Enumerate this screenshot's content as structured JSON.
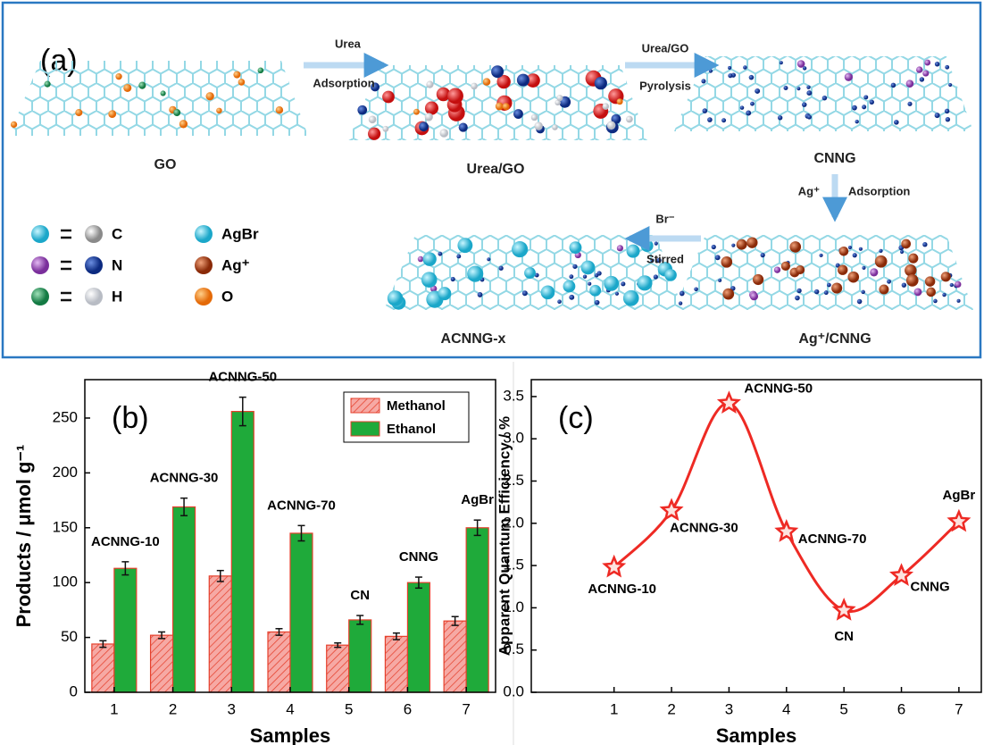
{
  "diagram": {
    "panel_label": "(a)",
    "sheets": [
      "GO",
      "Urea/GO",
      "CNNG",
      "Ag⁺/CNNG",
      "ACNNG-x"
    ],
    "steps": [
      {
        "top": "Urea",
        "bottom": "Adsorption"
      },
      {
        "top": "Urea/GO",
        "bottom": "Pyrolysis"
      },
      {
        "top": "Ag⁺",
        "bottom": "Adsorption"
      },
      {
        "top": "Br⁻",
        "bottom": "Stirred"
      }
    ],
    "legend": {
      "atoms": [
        "C",
        "N",
        "H"
      ],
      "species": [
        "AgBr",
        "Ag⁺",
        "O"
      ]
    }
  },
  "chart_data": [
    {
      "type": "bar",
      "panel_label": "(b)",
      "x_label": "Samples",
      "y_label": "Products / μmol g⁻¹",
      "categories": [
        "1",
        "2",
        "3",
        "4",
        "5",
        "6",
        "7"
      ],
      "series": [
        {
          "name": "Methanol",
          "color": "#f6a9a4",
          "hatch": true,
          "values": [
            44,
            52,
            106,
            55,
            43,
            51,
            65
          ],
          "errors": [
            3,
            3,
            5,
            3,
            2,
            3,
            4
          ]
        },
        {
          "name": "Ethanol",
          "color": "#1faa3a",
          "values": [
            113,
            169,
            256,
            145,
            66,
            100,
            150
          ],
          "errors": [
            6,
            8,
            13,
            7,
            4,
            5,
            7
          ]
        }
      ],
      "edgecolor": "#e5402c",
      "annotations": [
        "ACNNG-10",
        "ACNNG-30",
        "ACNNG-50",
        "ACNNG-70",
        "CN",
        "CNNG",
        "AgBr"
      ],
      "ylim": [
        0,
        285
      ],
      "yticks": [
        0,
        50,
        100,
        150,
        200,
        250
      ],
      "legend": "upper right"
    },
    {
      "type": "line",
      "panel_label": "(c)",
      "x_label": "Samples",
      "y_label": "Apparent Quantum Efficiency / %",
      "x": [
        1,
        2,
        3,
        4,
        5,
        6,
        7
      ],
      "values": [
        1.48,
        2.15,
        3.42,
        1.9,
        0.97,
        1.38,
        2.02
      ],
      "point_labels": [
        "ACNNG-10",
        "ACNNG-30",
        "ACNNG-50",
        "ACNNG-70",
        "CN",
        "CNNG",
        "AgBr"
      ],
      "color": "#ee2a24",
      "marker": "star",
      "xlim": [
        -0.44,
        7.39
      ],
      "xticks": [
        1,
        2,
        3,
        4,
        5,
        6,
        7
      ],
      "ylim": [
        0,
        3.7
      ],
      "yticks": [
        {
          "value": 0,
          "label": "0.0"
        },
        0.5,
        {
          "value": 1,
          "label": "1.0"
        },
        1.5,
        {
          "value": 2,
          "label": "2.0"
        },
        2.5,
        {
          "value": 3,
          "label": "3.0"
        },
        3.5
      ]
    }
  ]
}
